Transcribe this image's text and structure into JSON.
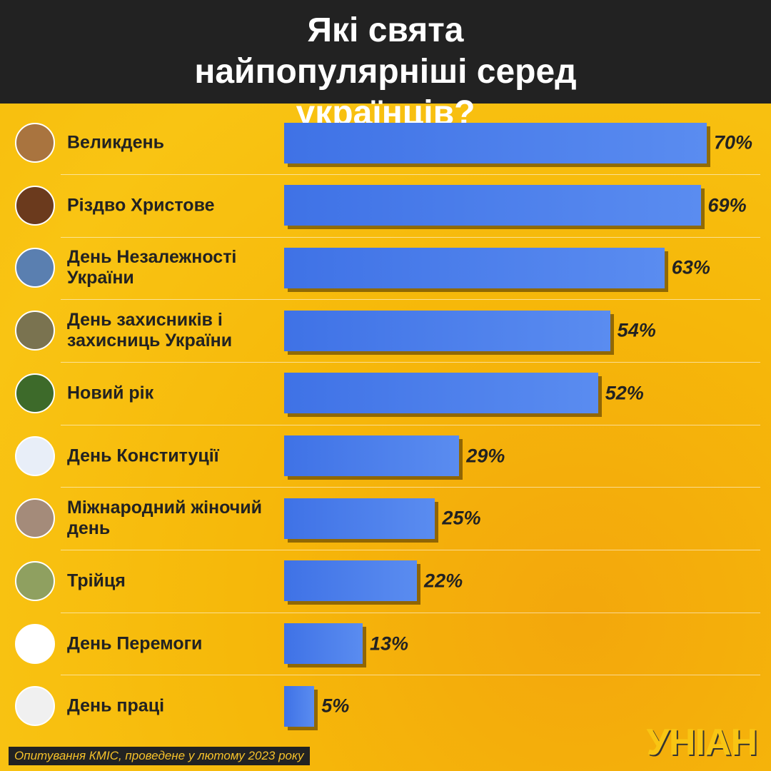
{
  "chart_data": {
    "type": "bar",
    "title": "Які свята найпопулярніші серед українців?",
    "categories": [
      "Великдень",
      "Різдво Христове",
      "День Незалежності України",
      "День захисників і захисниць України",
      "Новий рік",
      "День Конституції",
      "Міжнародний жіночий день",
      "Трійця",
      "День Перемоги",
      "День праці"
    ],
    "values": [
      70,
      69,
      63,
      54,
      52,
      29,
      25,
      22,
      13,
      5
    ],
    "value_labels": [
      "70%",
      "69%",
      "63%",
      "54%",
      "52%",
      "29%",
      "25%",
      "22%",
      "13%",
      "5%"
    ],
    "color": "#3f72e6",
    "source": "Опитування КМІС, проведене у лютому 2023 року",
    "logo": "УНІАН"
  }
}
